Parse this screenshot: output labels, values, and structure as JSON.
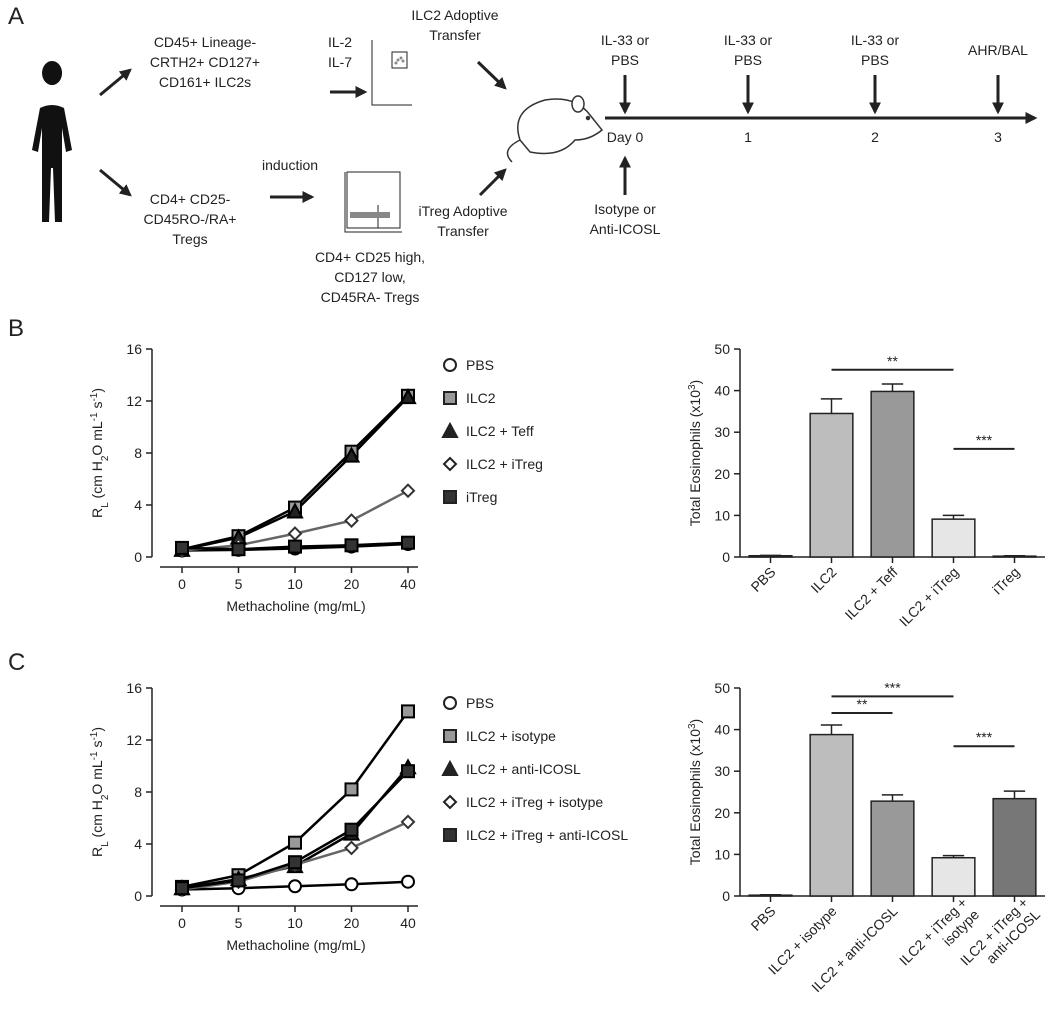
{
  "panel_labels": [
    "A",
    "B",
    "C"
  ],
  "diagram": {
    "ilc2_source": [
      "CD45+ Lineage-",
      "CRTH2+ CD127+",
      "CD161+ ILC2s"
    ],
    "cytokines": [
      "IL-2",
      "IL-7"
    ],
    "ilc2_transfer": [
      "ILC2 Adoptive",
      "Transfer"
    ],
    "treg_source": [
      "CD4+ CD25-",
      "CD45RO-/RA+",
      "Tregs"
    ],
    "induction": "induction",
    "itreg_phenotype": [
      "CD4+ CD25 high,",
      "CD127 low,",
      "CD45RA- Tregs"
    ],
    "itreg_transfer": [
      "iTreg Adoptive",
      "Transfer"
    ],
    "timeline": {
      "treatments": [
        [
          "IL-33 or",
          "PBS"
        ],
        [
          "IL-33 or",
          "PBS"
        ],
        [
          "IL-33 or",
          "PBS"
        ],
        [
          "AHR/BAL"
        ]
      ],
      "days": [
        "Day 0",
        "1",
        "2",
        "3"
      ],
      "blockade": [
        "Isotype or",
        "Anti-ICOSL"
      ]
    }
  },
  "chart_data": [
    {
      "type": "line",
      "categories": [
        0,
        5,
        10,
        20,
        40
      ],
      "xlabel": "Methacholine (mg/mL)",
      "ylabel": [
        {
          "text": "R"
        },
        {
          "text": "L",
          "script": "sub"
        },
        {
          "text": " (cm H"
        },
        {
          "text": "2",
          "script": "sub"
        },
        {
          "text": "O mL"
        },
        {
          "text": "-1",
          "script": "super"
        },
        {
          "text": " s"
        },
        {
          "text": "-1",
          "script": "super"
        },
        {
          "text": ")"
        }
      ],
      "ylim": [
        0,
        16
      ],
      "yticks": [
        0,
        4,
        8,
        12,
        16
      ],
      "series": [
        {
          "name": "PBS",
          "color": "#000000",
          "marker": "circle",
          "fill": "#ffffff",
          "values": [
            0.5,
            0.55,
            0.65,
            0.8,
            1.0
          ]
        },
        {
          "name": "ILC2",
          "color": "#000000",
          "marker": "square",
          "fill": "#999999",
          "values": [
            0.6,
            1.6,
            3.8,
            8.1,
            12.4
          ]
        },
        {
          "name": "ILC2 + Teff",
          "color": "#000000",
          "marker": "triangle",
          "fill": "#222222",
          "values": [
            0.55,
            1.5,
            3.5,
            7.8,
            12.3
          ]
        },
        {
          "name": "ILC2 + iTreg",
          "color": "#666666",
          "marker": "diamond",
          "fill": "#ffffff",
          "values": [
            0.5,
            0.9,
            1.8,
            2.8,
            5.1
          ]
        },
        {
          "name": "iTreg",
          "color": "#000000",
          "marker": "square",
          "fill": "#333333",
          "values": [
            0.7,
            0.6,
            0.8,
            0.9,
            1.1
          ]
        }
      ]
    },
    {
      "type": "bar",
      "categories": [
        [
          "PBS"
        ],
        [
          "ILC2"
        ],
        [
          "ILC2 + Teff"
        ],
        [
          "ILC2 + iTreg"
        ],
        [
          "iTreg"
        ]
      ],
      "ylabel": [
        {
          "text": "Total Eosinophils (x10"
        },
        {
          "text": "3",
          "script": "super"
        },
        {
          "text": ")"
        }
      ],
      "ylim": [
        0,
        50
      ],
      "yticks": [
        0,
        10,
        20,
        30,
        40,
        50
      ],
      "values": [
        0.3,
        34.5,
        39.8,
        9.1,
        0.2
      ],
      "errors": [
        0.1,
        3.5,
        1.8,
        0.9,
        0.1
      ],
      "colors": [
        "#ffffff",
        "#bdbdbd",
        "#999999",
        "#e6e6e6",
        "#ffffff"
      ],
      "annotations": [
        {
          "from": 1,
          "to": 3,
          "y": 45,
          "label": "**"
        },
        {
          "from": 3,
          "to": 4,
          "y": 26,
          "label": "***"
        }
      ]
    },
    {
      "type": "line",
      "categories": [
        0,
        5,
        10,
        20,
        40
      ],
      "xlabel": "Methacholine (mg/mL)",
      "ylabel": [
        {
          "text": "R"
        },
        {
          "text": "L",
          "script": "sub"
        },
        {
          "text": " (cm H"
        },
        {
          "text": "2",
          "script": "sub"
        },
        {
          "text": "O mL"
        },
        {
          "text": "-1",
          "script": "super"
        },
        {
          "text": " s"
        },
        {
          "text": "-1",
          "script": "super"
        },
        {
          "text": ")"
        }
      ],
      "ylim": [
        0,
        16
      ],
      "yticks": [
        0,
        4,
        8,
        12,
        16
      ],
      "series": [
        {
          "name": "PBS",
          "color": "#000000",
          "marker": "circle",
          "fill": "#ffffff",
          "values": [
            0.5,
            0.6,
            0.75,
            0.9,
            1.1
          ]
        },
        {
          "name": "ILC2 + isotype",
          "color": "#000000",
          "marker": "square",
          "fill": "#999999",
          "values": [
            0.7,
            1.6,
            4.1,
            8.2,
            14.2
          ]
        },
        {
          "name": "ILC2 + anti-ICOSL",
          "color": "#000000",
          "marker": "triangle",
          "fill": "#222222",
          "values": [
            0.6,
            1.3,
            2.3,
            4.8,
            9.9
          ]
        },
        {
          "name": "ILC2 + iTreg + isotype",
          "color": "#666666",
          "marker": "diamond",
          "fill": "#ffffff",
          "values": [
            0.5,
            1.1,
            2.4,
            3.7,
            5.7
          ]
        },
        {
          "name": "ILC2 + iTreg + anti-ICOSL",
          "color": "#000000",
          "marker": "square",
          "fill": "#333333",
          "values": [
            0.6,
            1.2,
            2.6,
            5.1,
            9.6
          ]
        }
      ]
    },
    {
      "type": "bar",
      "categories": [
        [
          "PBS"
        ],
        [
          "ILC2 + isotype"
        ],
        [
          "ILC2 + anti-ICOSL"
        ],
        [
          "ILC2 + iTreg +",
          "isotype"
        ],
        [
          "ILC2 + iTreg +",
          "anti-ICOSL"
        ]
      ],
      "ylabel": [
        {
          "text": "Total Eosinophils (x10"
        },
        {
          "text": "3",
          "script": "super"
        },
        {
          "text": ")"
        }
      ],
      "ylim": [
        0,
        50
      ],
      "yticks": [
        0,
        10,
        20,
        30,
        40,
        50
      ],
      "values": [
        0.2,
        38.8,
        22.8,
        9.2,
        23.4
      ],
      "errors": [
        0.1,
        2.3,
        1.5,
        0.5,
        1.8
      ],
      "colors": [
        "#ffffff",
        "#bdbdbd",
        "#999999",
        "#e6e6e6",
        "#777777"
      ],
      "annotations": [
        {
          "from": 1,
          "to": 3,
          "y": 48,
          "label": "***"
        },
        {
          "from": 1,
          "to": 2,
          "y": 44,
          "label": "**"
        },
        {
          "from": 3,
          "to": 4,
          "y": 36,
          "label": "***"
        }
      ]
    }
  ]
}
